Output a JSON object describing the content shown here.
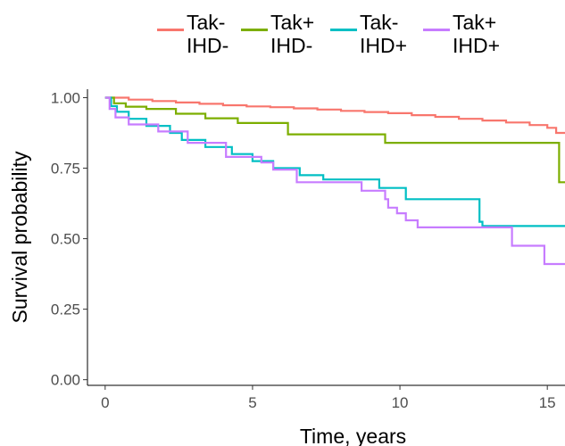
{
  "chart_data": {
    "type": "line",
    "step": true,
    "title": "",
    "xlabel": "Time, years",
    "ylabel": "Survival probability",
    "xlim": [
      -0.6,
      15.6
    ],
    "ylim": [
      -0.02,
      1.03
    ],
    "xticks": [
      0,
      5,
      10,
      15
    ],
    "xtick_labels": [
      "0",
      "5",
      "10",
      "15"
    ],
    "yticks": [
      0,
      0.25,
      0.5,
      0.75,
      1
    ],
    "ytick_labels": [
      "0.00",
      "0.25",
      "0.50",
      "0.75",
      "1.00"
    ],
    "grid": false,
    "legend_position": "top",
    "series": [
      {
        "name": "Tak-\nIHD-",
        "label_lines": [
          "Tak-",
          "IHD-"
        ],
        "color": "#F8766D",
        "points": [
          [
            0,
            1.0
          ],
          [
            0.8,
            0.993
          ],
          [
            1.6,
            0.988
          ],
          [
            2.4,
            0.983
          ],
          [
            3.2,
            0.978
          ],
          [
            4.0,
            0.973
          ],
          [
            4.8,
            0.969
          ],
          [
            5.6,
            0.966
          ],
          [
            6.4,
            0.962
          ],
          [
            7.2,
            0.958
          ],
          [
            8.0,
            0.953
          ],
          [
            8.8,
            0.949
          ],
          [
            9.6,
            0.945
          ],
          [
            10.4,
            0.938
          ],
          [
            11.2,
            0.932
          ],
          [
            12.0,
            0.925
          ],
          [
            12.8,
            0.919
          ],
          [
            13.6,
            0.912
          ],
          [
            14.4,
            0.903
          ],
          [
            15.0,
            0.893
          ],
          [
            15.3,
            0.875
          ],
          [
            15.6,
            0.872
          ]
        ]
      },
      {
        "name": "Tak+\nIHD-",
        "label_lines": [
          "Tak+",
          "IHD-"
        ],
        "color": "#7CAE00",
        "points": [
          [
            0,
            1.0
          ],
          [
            0.3,
            0.98
          ],
          [
            0.7,
            0.968
          ],
          [
            1.4,
            0.96
          ],
          [
            2.4,
            0.943
          ],
          [
            3.4,
            0.927
          ],
          [
            4.5,
            0.91
          ],
          [
            6.2,
            0.87
          ],
          [
            9.5,
            0.84
          ],
          [
            15.4,
            0.7
          ],
          [
            15.6,
            0.7
          ]
        ]
      },
      {
        "name": "Tak-\nIHD+",
        "label_lines": [
          "Tak-",
          "IHD+"
        ],
        "color": "#00BFC4",
        "points": [
          [
            0,
            1.0
          ],
          [
            0.2,
            0.97
          ],
          [
            0.4,
            0.95
          ],
          [
            0.8,
            0.925
          ],
          [
            1.4,
            0.9
          ],
          [
            2.2,
            0.875
          ],
          [
            2.6,
            0.85
          ],
          [
            3.4,
            0.825
          ],
          [
            4.3,
            0.8
          ],
          [
            5.0,
            0.775
          ],
          [
            5.7,
            0.75
          ],
          [
            6.6,
            0.725
          ],
          [
            7.4,
            0.71
          ],
          [
            9.3,
            0.68
          ],
          [
            10.2,
            0.64
          ],
          [
            12.7,
            0.56
          ],
          [
            12.8,
            0.545
          ],
          [
            15.6,
            0.545
          ]
        ]
      },
      {
        "name": "Tak+\nIHD+",
        "label_lines": [
          "Tak+",
          "IHD+"
        ],
        "color": "#C77CFF",
        "points": [
          [
            0,
            1.0
          ],
          [
            0.15,
            0.96
          ],
          [
            0.35,
            0.93
          ],
          [
            0.8,
            0.905
          ],
          [
            1.8,
            0.88
          ],
          [
            2.8,
            0.84
          ],
          [
            4.1,
            0.79
          ],
          [
            5.3,
            0.77
          ],
          [
            5.7,
            0.745
          ],
          [
            6.5,
            0.7
          ],
          [
            8.7,
            0.67
          ],
          [
            9.5,
            0.64
          ],
          [
            9.6,
            0.61
          ],
          [
            9.9,
            0.59
          ],
          [
            10.2,
            0.565
          ],
          [
            10.6,
            0.54
          ],
          [
            13.8,
            0.475
          ],
          [
            14.9,
            0.41
          ],
          [
            15.6,
            0.41
          ]
        ]
      }
    ]
  }
}
